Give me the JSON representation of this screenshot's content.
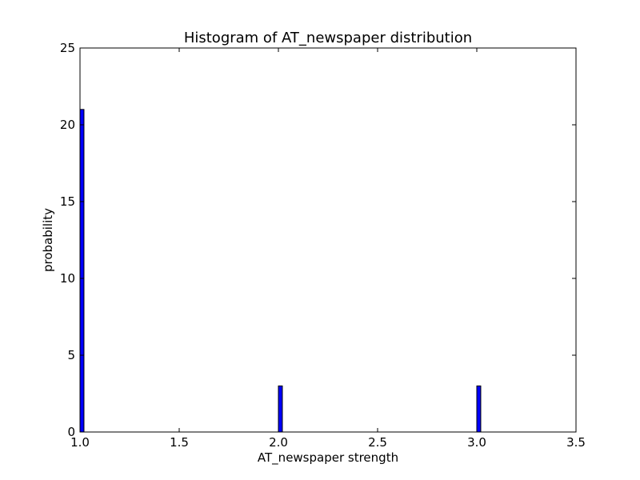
{
  "chart_data": {
    "type": "bar",
    "title": "Histogram of AT_newspaper  distribution",
    "xlabel": "AT_newspaper  strength",
    "ylabel": "probability",
    "xlim": [
      1.0,
      3.5
    ],
    "ylim": [
      0,
      25
    ],
    "x_ticks": [
      "1.0",
      "1.5",
      "2.0",
      "2.5",
      "3.0",
      "3.5"
    ],
    "y_ticks": [
      "0",
      "5",
      "10",
      "15",
      "20",
      "25"
    ],
    "bins": [
      {
        "x_start": 1.0,
        "x_end": 1.02,
        "value": 21
      },
      {
        "x_start": 2.0,
        "x_end": 2.02,
        "value": 3
      },
      {
        "x_start": 3.0,
        "x_end": 3.02,
        "value": 3
      }
    ],
    "bar_color": "#0000ff",
    "edge_color": "#000000",
    "grid": false
  }
}
